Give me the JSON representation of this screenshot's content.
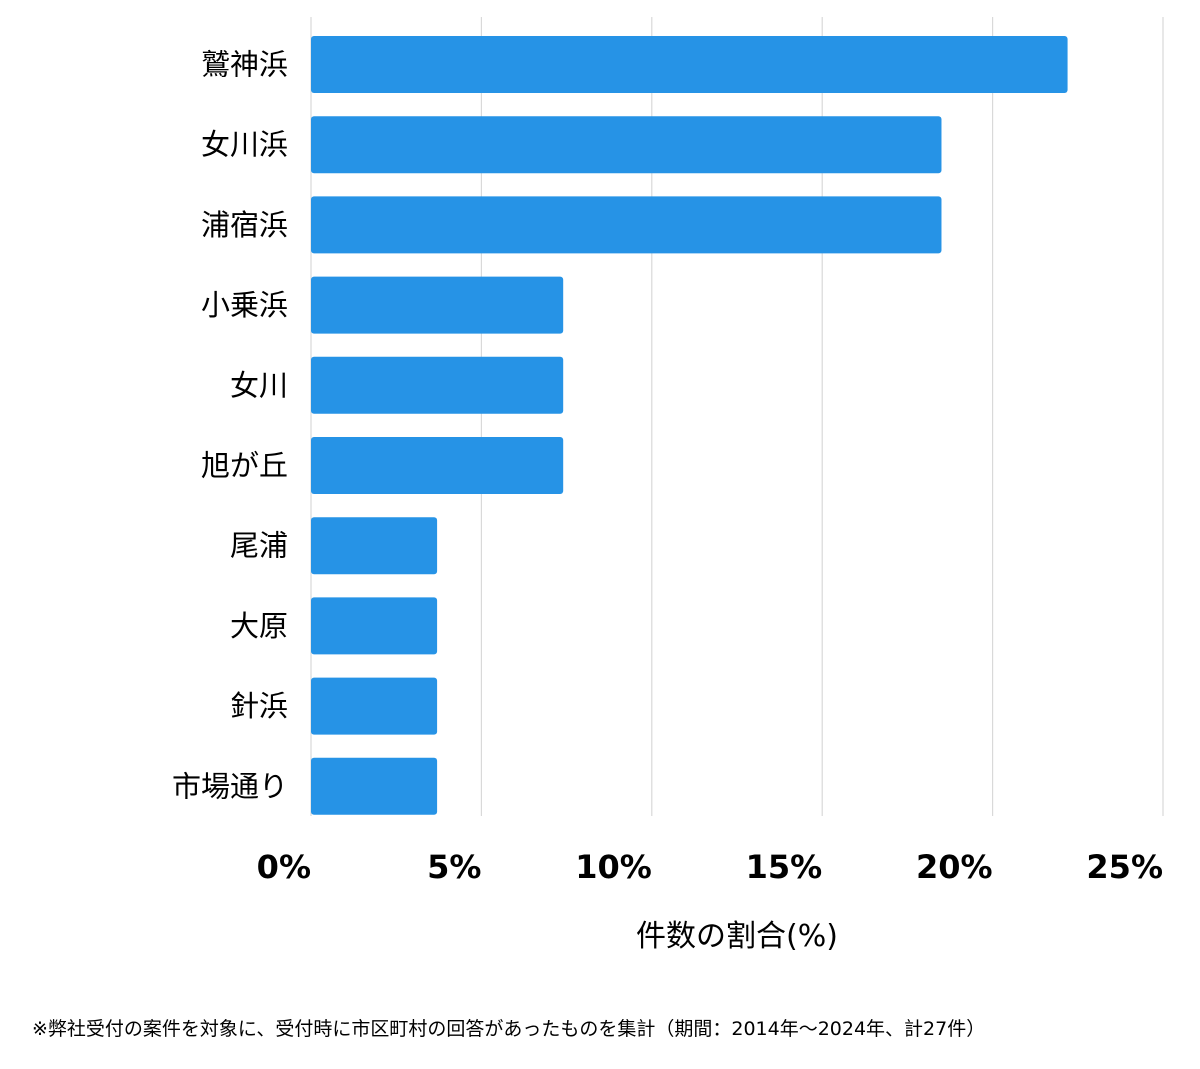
{
  "chart_data": {
    "type": "bar",
    "orientation": "horizontal",
    "categories": [
      "鷲神浜",
      "女川浜",
      "浦宿浜",
      "小乗浜",
      "女川",
      "旭が丘",
      "尾浦",
      "大原",
      "針浜",
      "市場通り"
    ],
    "values": [
      22.2,
      18.5,
      18.5,
      7.4,
      7.4,
      7.4,
      3.7,
      3.7,
      3.7,
      3.7
    ],
    "xlim": [
      0,
      25
    ],
    "xticks": [
      0,
      5,
      10,
      15,
      20,
      25
    ],
    "xtick_labels": [
      "0%",
      "5%",
      "10%",
      "15%",
      "20%",
      "25%"
    ],
    "xlabel": "件数の割合(%)",
    "ylabel": "",
    "grid": "vertical",
    "bar_color": "#2693e6",
    "grid_color": "#d9d9d9"
  },
  "footnote": "※弊社受付の案件を対象に、受付時に市区町村の回答があったものを集計（期間：2014年～2024年、計27件）"
}
